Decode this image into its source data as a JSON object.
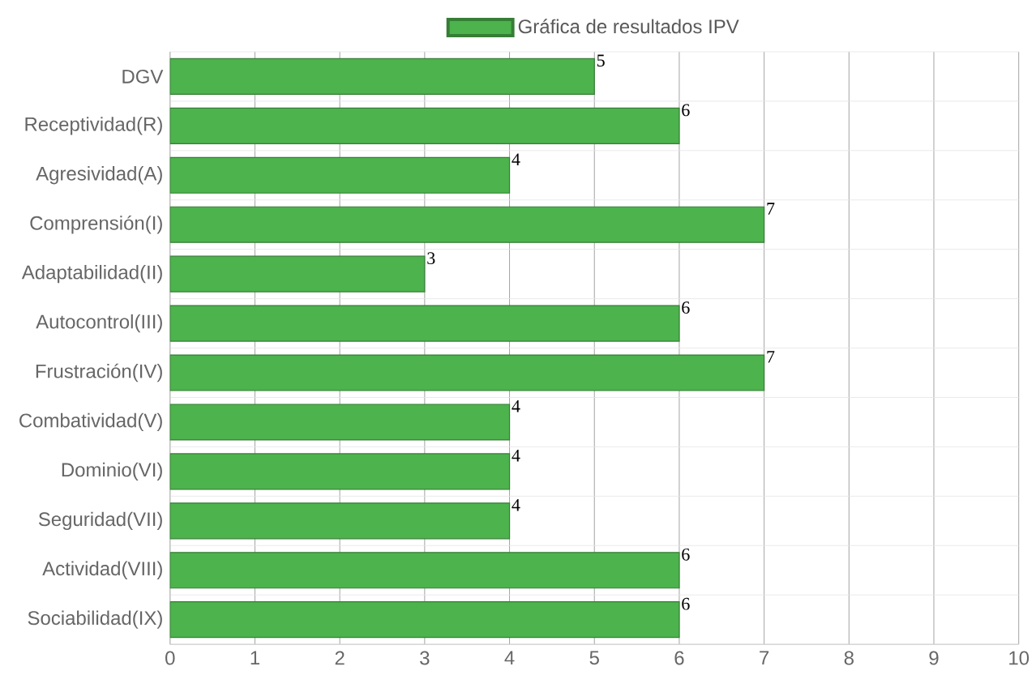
{
  "chart_data": {
    "type": "bar",
    "orientation": "horizontal",
    "categories": [
      "DGV",
      "Receptividad(R)",
      "Agresividad(A)",
      "Comprensión(I)",
      "Adaptabilidad(II)",
      "Autocontrol(III)",
      "Frustración(IV)",
      "Combatividad(V)",
      "Dominio(VI)",
      "Seguridad(VII)",
      "Actividad(VIII)",
      "Sociabilidad(IX)"
    ],
    "series": [
      {
        "name": "Gráfica de resultados IPV",
        "color": "#4db34d",
        "values": [
          5,
          6,
          4,
          7,
          3,
          6,
          7,
          4,
          4,
          4,
          6,
          6
        ]
      }
    ],
    "xlim": [
      0,
      10
    ],
    "xticks": [
      0,
      1,
      2,
      3,
      4,
      5,
      6,
      7,
      8,
      9,
      10
    ],
    "grid": true,
    "legend": "top",
    "data_labels": true
  }
}
